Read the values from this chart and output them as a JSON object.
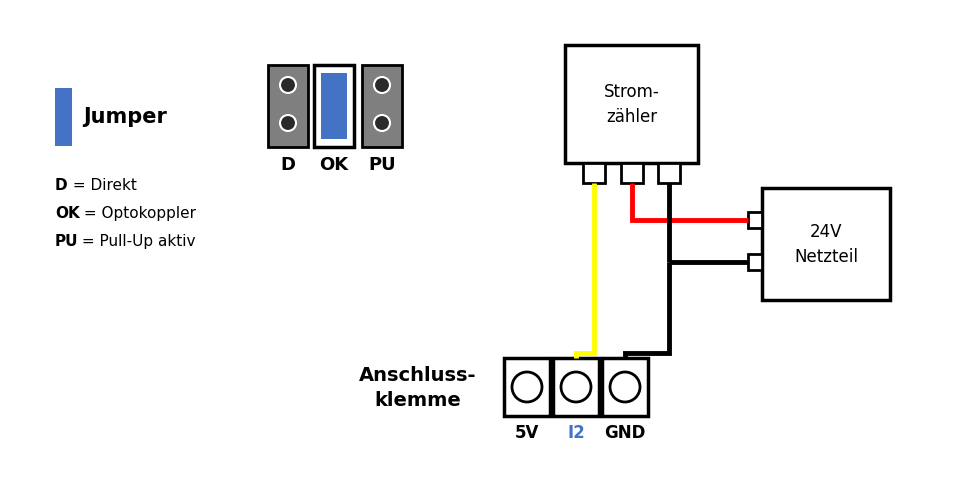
{
  "bg_color": "#ffffff",
  "blue_color": "#4472C4",
  "red_color": "#FF0000",
  "yellow_color": "#FFFF00",
  "black_color": "#000000",
  "gray_color": "#7F7F7F",
  "jumper_label": "Jumper",
  "legend_lines": [
    {
      "bold": "D",
      "rest": " = Direkt"
    },
    {
      "bold": "OK",
      "rest": " = Optokoppler"
    },
    {
      "bold": "PU",
      "rest": " = Pull-Up aktiv"
    }
  ],
  "jumper_labels": [
    "D",
    "OK",
    "PU"
  ],
  "stromzaehler_label": "Strom-\nzähler",
  "netzteil_label": "24V\nNetzteil",
  "anschluss_label": "Anschluss-\nklemme",
  "terminal_labels": [
    "5V",
    "I2",
    "GND"
  ],
  "terminal_label_colors": [
    "#000000",
    "#4472C4",
    "#000000"
  ]
}
